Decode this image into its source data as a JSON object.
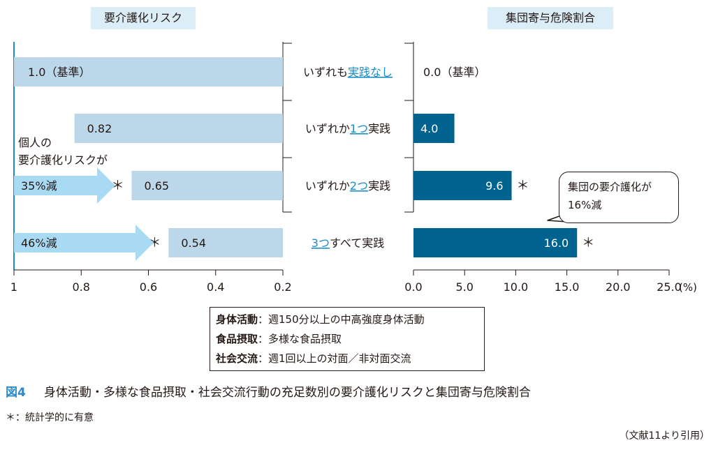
{
  "left_title": "要介護化リスク",
  "right_title": "集団寄与危険割合",
  "rows": [
    {
      "label_pre": "いずれも",
      "label_hl": "実践なし",
      "label_post": "",
      "risk": 1.0,
      "risk_label": "1.0（基準）",
      "par": 0.0,
      "par_label": "0.0（基準）",
      "sig": false
    },
    {
      "label_pre": "いずれか",
      "label_hl": "1つ",
      "label_post": "実践",
      "risk": 0.82,
      "risk_label": "0.82",
      "par": 4.0,
      "par_label": "4.0",
      "sig": false
    },
    {
      "label_pre": "いずれか",
      "label_hl": "2つ",
      "label_post": "実践",
      "risk": 0.65,
      "risk_label": "0.65",
      "par": 9.6,
      "par_label": "9.6",
      "sig": true
    },
    {
      "label_pre": "",
      "label_hl": "3つ",
      "label_post": "すべて実践",
      "risk": 0.54,
      "risk_label": "0.54",
      "par": 16.0,
      "par_label": "16.0",
      "sig": true
    }
  ],
  "significance_mark": "＊",
  "left_axis": {
    "ticks": [
      1,
      0.8,
      0.6,
      0.4,
      0.2
    ],
    "tick_labels": [
      "1",
      "0.8",
      "0.6",
      "0.4",
      "0.2"
    ],
    "range": [
      1,
      0.2
    ]
  },
  "right_axis": {
    "ticks": [
      0,
      5,
      10,
      15,
      20,
      25
    ],
    "tick_labels": [
      "0.0",
      "5.0",
      "10.0",
      "15.0",
      "20.0",
      "25.0"
    ],
    "range": [
      0,
      25
    ],
    "unit": "(%)"
  },
  "annotations": {
    "left_note_line1": "個人の",
    "left_note_line2": "要介護化リスクが",
    "arrow_row3": "35%減",
    "arrow_row4": "46%減",
    "callout_line1": "集団の要介護化が",
    "callout_line2": "16%減"
  },
  "legend": [
    {
      "term": "身体活動",
      "desc": "：週150分以上の中高強度身体活動"
    },
    {
      "term": "食品摂取",
      "desc": "：多様な食品摂取"
    },
    {
      "term": "社会交流",
      "desc": "：週1回以上の対面／非対面交流"
    }
  ],
  "caption": {
    "fig_label": "図4",
    "text": "身体活動・多様な食品摂取・社会交流行動の充足数別の要介護化リスクと集団寄与危険割合"
  },
  "footnote": "＊：統計学的に有意",
  "source": "（文献11より引用）",
  "colors": {
    "risk_bar": "#bcd7ea",
    "par_bar": "#00638f",
    "highlight_text": "#1a8cc8",
    "arrow": "#a8daf3",
    "title_bg": "#dbeef7",
    "axis": "#1a8cc8",
    "caption_label": "#2b8ac8"
  },
  "chart_data": [
    {
      "type": "bar",
      "title": "要介護化リスク",
      "categories": [
        "いずれも実践なし",
        "いずれか1つ実践",
        "いずれか2つ実践",
        "3つすべて実践"
      ],
      "values": [
        1.0,
        0.82,
        0.65,
        0.54
      ],
      "xlim": [
        1,
        0.2
      ],
      "orientation": "horizontal",
      "significant": [
        false,
        false,
        true,
        true
      ]
    },
    {
      "type": "bar",
      "title": "集団寄与危険割合",
      "categories": [
        "いずれも実践なし",
        "いずれか1つ実践",
        "いずれか2つ実践",
        "3つすべて実践"
      ],
      "values": [
        0.0,
        4.0,
        9.6,
        16.0
      ],
      "xlim": [
        0,
        25
      ],
      "unit": "(%)",
      "orientation": "horizontal",
      "significant": [
        false,
        false,
        true,
        true
      ]
    }
  ]
}
